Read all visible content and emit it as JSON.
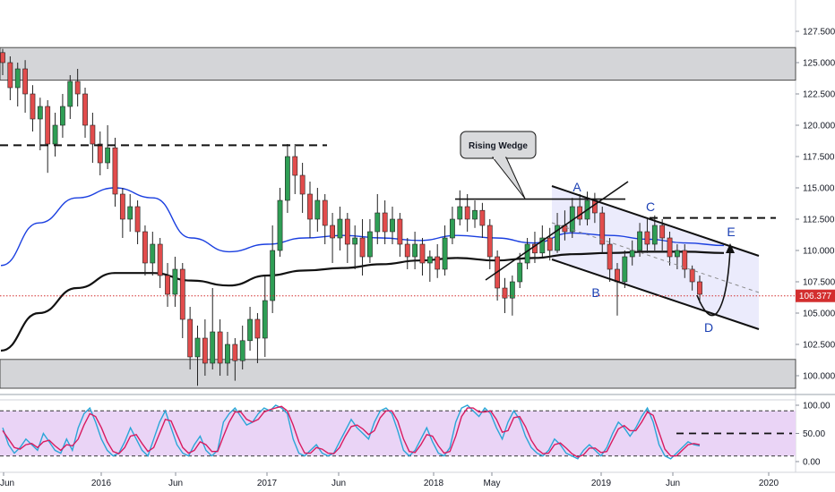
{
  "chart_data": [
    {
      "type": "candlestick",
      "panel": "price",
      "title": "",
      "x_ticks": [
        "Jun",
        "2016",
        "Jun",
        "2017",
        "Jun",
        "2018",
        "May",
        "2019",
        "Jun",
        "2020"
      ],
      "y_ticks": [
        "100.000",
        "102.500",
        "105.000",
        "107.500",
        "110.000",
        "112.500",
        "115.000",
        "117.500",
        "120.000",
        "122.500",
        "125.000",
        "127.500"
      ],
      "ylim": [
        98.6,
        128.8
      ],
      "last_price": "106.377",
      "last_price_value": 106.377,
      "moving_averages": [
        {
          "color": "#1a3fe0",
          "values": [
            108.8,
            112.2,
            114.2,
            115.0,
            114.2,
            111.0,
            109.9,
            110.5,
            111.0,
            111.2,
            111.0,
            110.8,
            111.2,
            111.0,
            110.6,
            111.4,
            111.2,
            110.9,
            110.6,
            110.4
          ]
        },
        {
          "color": "#111111",
          "values": [
            102.0,
            105.0,
            107.0,
            108.2,
            108.2,
            107.6,
            107.2,
            108.0,
            108.4,
            108.6,
            108.9,
            109.2,
            109.4,
            109.2,
            109.4,
            109.7,
            109.8,
            109.9,
            109.9,
            109.8
          ]
        }
      ],
      "ma_points_start": 1,
      "ma_points_end": 808,
      "candles": [
        [
          125.8,
          125.0,
          126.1,
          124.0
        ],
        [
          125.0,
          123.0,
          125.5,
          122.0
        ],
        [
          123.0,
          124.5,
          125.0,
          121.5
        ],
        [
          124.5,
          122.5,
          125.2,
          121.0
        ],
        [
          122.5,
          120.5,
          123.2,
          119.5
        ],
        [
          120.5,
          121.5,
          122.2,
          118.0
        ],
        [
          121.5,
          118.5,
          122.0,
          116.2
        ],
        [
          118.5,
          120.0,
          121.0,
          117.5
        ],
        [
          120.0,
          121.5,
          122.5,
          119.0
        ],
        [
          121.5,
          123.5,
          124.0,
          120.5
        ],
        [
          123.5,
          122.5,
          124.5,
          121.5
        ],
        [
          122.5,
          120.0,
          123.0,
          119.0
        ],
        [
          120.0,
          118.5,
          121.0,
          117.0
        ],
        [
          118.5,
          117.0,
          119.5,
          116.0
        ],
        [
          117.0,
          118.2,
          120.0,
          116.5
        ],
        [
          118.2,
          114.5,
          119.0,
          113.5
        ],
        [
          114.5,
          112.5,
          115.0,
          111.0
        ],
        [
          112.5,
          113.5,
          114.5,
          111.5
        ],
        [
          113.5,
          111.5,
          114.0,
          110.5
        ],
        [
          111.5,
          109.0,
          112.0,
          108.0
        ],
        [
          109.0,
          110.5,
          111.5,
          108.0
        ],
        [
          110.5,
          108.0,
          111.0,
          107.0
        ],
        [
          108.0,
          106.5,
          109.0,
          105.5
        ],
        [
          106.5,
          108.5,
          109.5,
          105.5
        ],
        [
          108.5,
          104.5,
          109.0,
          103.0
        ],
        [
          104.5,
          101.5,
          105.5,
          100.5
        ],
        [
          101.5,
          103.0,
          104.0,
          99.2
        ],
        [
          103.0,
          101.0,
          104.5,
          100.0
        ],
        [
          101.0,
          103.5,
          107.0,
          100.5
        ],
        [
          103.5,
          101.0,
          104.5,
          100.0
        ],
        [
          101.0,
          102.5,
          103.5,
          100.0
        ],
        [
          102.5,
          101.2,
          103.0,
          99.6
        ],
        [
          101.2,
          102.8,
          104.0,
          100.5
        ],
        [
          102.8,
          104.5,
          105.5,
          102.0
        ],
        [
          104.5,
          103.0,
          105.0,
          101.0
        ],
        [
          103.0,
          106.0,
          108.0,
          101.5
        ],
        [
          106.0,
          110.0,
          112.0,
          105.0
        ],
        [
          110.0,
          114.0,
          115.0,
          109.5
        ],
        [
          114.0,
          117.5,
          118.5,
          113.0
        ],
        [
          117.5,
          116.0,
          118.5,
          114.5
        ],
        [
          116.0,
          114.5,
          117.0,
          113.0
        ],
        [
          114.5,
          112.5,
          115.5,
          111.0
        ],
        [
          112.5,
          114.0,
          115.0,
          111.5
        ],
        [
          114.0,
          112.0,
          114.5,
          110.5
        ],
        [
          112.0,
          111.0,
          113.0,
          109.0
        ],
        [
          111.0,
          112.5,
          113.5,
          110.0
        ],
        [
          112.5,
          110.5,
          113.0,
          109.0
        ],
        [
          110.5,
          111.0,
          112.0,
          108.5
        ],
        [
          111.0,
          109.5,
          112.5,
          108.0
        ],
        [
          109.5,
          111.5,
          112.5,
          109.0
        ],
        [
          111.5,
          113.0,
          114.5,
          110.5
        ],
        [
          113.0,
          111.5,
          114.0,
          110.5
        ],
        [
          111.5,
          112.5,
          113.5,
          110.5
        ],
        [
          112.5,
          110.5,
          113.0,
          109.5
        ],
        [
          110.5,
          109.5,
          111.0,
          108.5
        ],
        [
          109.5,
          110.5,
          111.5,
          108.5
        ],
        [
          110.5,
          109.0,
          111.0,
          108.0
        ],
        [
          109.0,
          109.5,
          110.0,
          107.5
        ],
        [
          109.5,
          108.5,
          110.5,
          107.8
        ],
        [
          108.5,
          111.0,
          112.0,
          108.0
        ],
        [
          111.0,
          112.5,
          113.5,
          110.5
        ],
        [
          112.5,
          113.5,
          114.8,
          112.0
        ],
        [
          113.5,
          112.5,
          114.5,
          111.5
        ],
        [
          112.5,
          113.2,
          114.0,
          111.8
        ],
        [
          113.2,
          112.0,
          113.8,
          111.0
        ],
        [
          112.0,
          109.5,
          112.5,
          108.5
        ],
        [
          109.5,
          107.0,
          110.0,
          106.0
        ],
        [
          107.0,
          106.2,
          107.8,
          105.0
        ],
        [
          106.2,
          107.5,
          108.0,
          104.8
        ],
        [
          107.5,
          109.0,
          109.8,
          107.0
        ],
        [
          109.0,
          110.5,
          111.0,
          108.5
        ],
        [
          110.5,
          109.8,
          111.5,
          109.0
        ],
        [
          109.8,
          111.0,
          112.0,
          109.5
        ],
        [
          111.0,
          110.0,
          111.8,
          109.2
        ],
        [
          110.0,
          112.0,
          113.0,
          109.8
        ],
        [
          112.0,
          111.5,
          113.2,
          110.8
        ],
        [
          111.5,
          113.5,
          114.2,
          111.0
        ],
        [
          113.5,
          112.5,
          114.5,
          112.0
        ],
        [
          112.5,
          114.0,
          114.7,
          112.0
        ],
        [
          114.0,
          113.0,
          114.6,
          112.2
        ],
        [
          113.0,
          110.5,
          113.5,
          109.8
        ],
        [
          110.5,
          108.5,
          111.0,
          107.5
        ],
        [
          108.5,
          107.5,
          109.0,
          104.8
        ],
        [
          107.5,
          109.5,
          110.0,
          107.0
        ],
        [
          109.5,
          110.0,
          110.8,
          108.8
        ],
        [
          110.0,
          111.5,
          112.2,
          109.5
        ],
        [
          111.5,
          110.5,
          112.5,
          109.8
        ],
        [
          110.5,
          112.0,
          112.8,
          110.0
        ],
        [
          112.0,
          111.0,
          112.5,
          110.0
        ],
        [
          111.0,
          109.5,
          111.5,
          108.8
        ],
        [
          109.5,
          110.0,
          110.5,
          108.5
        ],
        [
          110.0,
          108.5,
          110.5,
          107.8
        ],
        [
          108.5,
          107.5,
          108.8,
          106.8
        ],
        [
          107.5,
          106.5,
          108.0,
          105.8
        ]
      ],
      "shapes": {
        "resistance_zone": [
          123.6,
          126.2
        ],
        "support_zone": [
          99.0,
          101.3
        ],
        "dashed_resistance": 118.4,
        "wedge_top": 114.1,
        "channel_dashed_resistance": 112.6
      },
      "wave_labels": [
        "A",
        "B",
        "C",
        "D",
        "E"
      ],
      "callout_text": "Rising Wedge"
    },
    {
      "type": "line",
      "panel": "stochastic",
      "title": "",
      "y_ticks": [
        "0.00",
        "50.00",
        "100.00"
      ],
      "ylim": [
        -12,
        112
      ],
      "levels": [
        90,
        10
      ],
      "level_mid": 50,
      "series": [
        {
          "color": "#2aa6d8",
          "values": [
            60,
            30,
            15,
            25,
            40,
            30,
            20,
            50,
            35,
            20,
            15,
            40,
            20,
            60,
            85,
            95,
            70,
            40,
            20,
            10,
            15,
            35,
            60,
            40,
            20,
            10,
            40,
            70,
            90,
            60,
            30,
            15,
            10,
            30,
            45,
            20,
            10,
            20,
            70,
            85,
            95,
            80,
            65,
            70,
            85,
            95,
            90,
            100,
            95,
            85,
            40,
            15,
            10,
            20,
            30,
            15,
            10,
            15,
            35,
            55,
            75,
            60,
            50,
            40,
            70,
            90,
            95,
            85,
            55,
            20,
            10,
            20,
            40,
            60,
            35,
            15,
            10,
            25,
            70,
            95,
            100,
            90,
            80,
            95,
            85,
            60,
            40,
            70,
            90,
            75,
            45,
            25,
            15,
            10,
            20,
            40,
            30,
            15,
            10,
            5,
            20,
            30,
            20,
            10,
            25,
            50,
            70,
            60,
            45,
            60,
            80,
            95,
            70,
            30,
            10,
            5,
            15,
            25,
            35,
            30,
            28
          ]
        },
        {
          "color": "#d81b60",
          "values": [
            55,
            40,
            25,
            22,
            30,
            32,
            25,
            35,
            38,
            28,
            20,
            30,
            28,
            40,
            65,
            85,
            80,
            60,
            35,
            18,
            14,
            25,
            45,
            48,
            32,
            18,
            25,
            50,
            75,
            72,
            48,
            25,
            15,
            20,
            35,
            30,
            18,
            18,
            45,
            70,
            88,
            88,
            75,
            70,
            75,
            88,
            92,
            95,
            98,
            90,
            65,
            35,
            15,
            15,
            25,
            22,
            15,
            14,
            25,
            45,
            62,
            65,
            58,
            48,
            55,
            78,
            90,
            90,
            72,
            40,
            18,
            16,
            30,
            48,
            45,
            28,
            15,
            18,
            45,
            80,
            95,
            95,
            88,
            88,
            90,
            75,
            52,
            55,
            78,
            80,
            62,
            38,
            22,
            14,
            15,
            30,
            33,
            24,
            14,
            8,
            12,
            24,
            24,
            16,
            18,
            38,
            58,
            64,
            55,
            55,
            70,
            88,
            82,
            52,
            22,
            10,
            10,
            20,
            30,
            32,
            30
          ]
        }
      ]
    }
  ]
}
